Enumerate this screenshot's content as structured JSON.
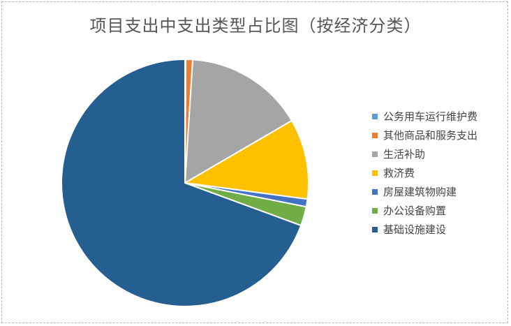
{
  "chart_data": {
    "type": "pie",
    "title": "项目支出中支出类型占比图（按经济分类）",
    "categories": [
      "公务用车运行维护费",
      "其他商品和服务支出",
      "生活补助",
      "救济费",
      "房屋建筑物购建",
      "办公设备购置",
      "基础设施建设"
    ],
    "values": [
      0.1,
      0.9,
      15.6,
      10.5,
      1.0,
      2.5,
      69.4
    ],
    "colors": [
      "#5B9BD5",
      "#ED7D31",
      "#A5A5A5",
      "#FFC000",
      "#4472C4",
      "#70AD47",
      "#255E91"
    ],
    "legend": "right",
    "start_angle_deg": 0,
    "direction": "clockwise"
  }
}
